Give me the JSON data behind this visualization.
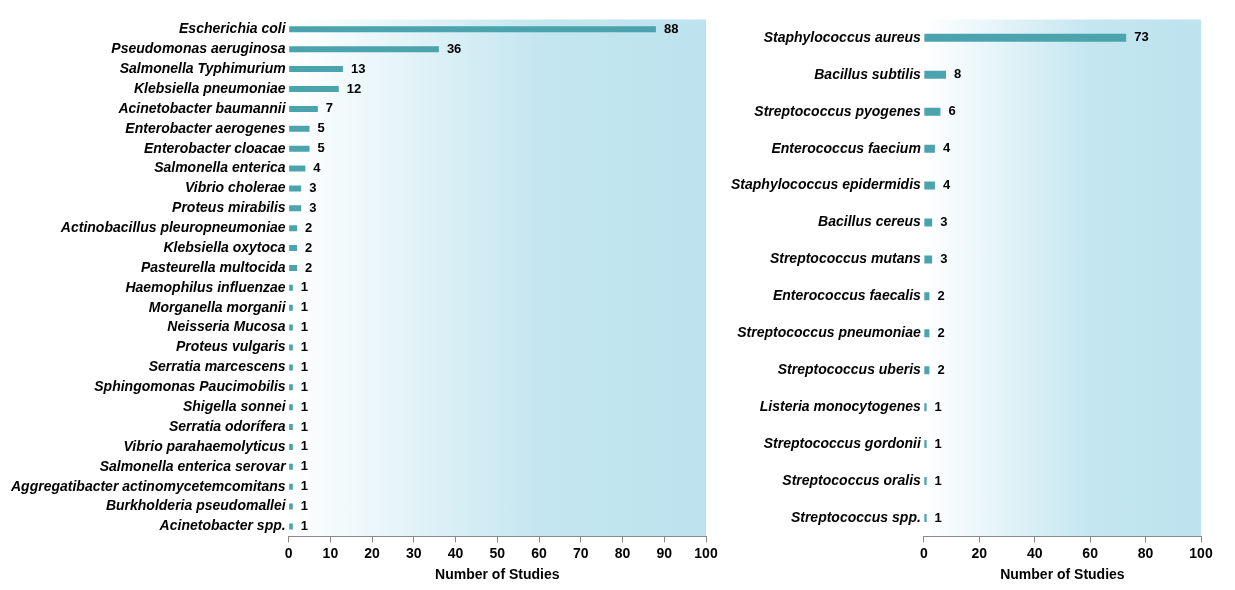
{
  "chart_data": [
    {
      "type": "bar",
      "orientation": "horizontal",
      "xlabel": "Number of Studies",
      "categories": [
        "Escherichia coli",
        "Pseudomonas aeruginosa",
        "Salmonella Typhimurium",
        "Klebsiella pneumoniae",
        "Acinetobacter baumannii",
        "Enterobacter aerogenes",
        "Enterobacter cloacae",
        "Salmonella enterica",
        "Vibrio cholerae",
        "Proteus mirabilis",
        "Actinobacillus pleuropneumoniae",
        "Klebsiella oxytoca",
        "Pasteurella multocida",
        "Haemophilus influenzae",
        "Morganella morganii",
        "Neisseria Mucosa",
        "Proteus vulgaris",
        "Serratia marcescens",
        "Sphingomonas Paucimobilis",
        "Shigella sonnei",
        "Serratia odorífera",
        "Vibrio parahaemolyticus",
        "Salmonella enterica serovar",
        "Aggregatibacter actinomycetemcomitans",
        "Burkholderia pseudomallei",
        "Acinetobacter spp."
      ],
      "values": [
        88,
        36,
        13,
        12,
        7,
        5,
        5,
        4,
        3,
        3,
        2,
        2,
        2,
        1,
        1,
        1,
        1,
        1,
        1,
        1,
        1,
        1,
        1,
        1,
        1,
        1
      ],
      "color": "#4aa3ad",
      "xlim": [
        0,
        100
      ],
      "xticks": [
        0,
        10,
        20,
        30,
        40,
        50,
        60,
        70,
        80,
        90,
        100
      ],
      "grid": false,
      "legend": false,
      "data_labels": true
    },
    {
      "type": "bar",
      "orientation": "horizontal",
      "xlabel": "Number of Studies",
      "categories": [
        "Staphylococcus aureus",
        "Bacillus subtilis",
        "Streptococcus pyogenes",
        "Enterococcus faecium",
        "Staphylococcus epidermidis",
        "Bacillus cereus",
        "Streptococcus mutans",
        "Enterococcus faecalis",
        "Streptococcus pneumoniae",
        "Streptococcus uberis",
        "Listeria monocytogenes",
        "Streptococcus gordonii",
        "Streptococcus oralis",
        "Streptococcus spp."
      ],
      "values": [
        73,
        8,
        6,
        4,
        4,
        3,
        3,
        2,
        2,
        2,
        1,
        1,
        1,
        1
      ],
      "color": "#4aa3ad",
      "xlim": [
        0,
        100
      ],
      "xticks": [
        0,
        20,
        40,
        60,
        80,
        100
      ],
      "grid": false,
      "legend": false,
      "data_labels": true
    }
  ]
}
